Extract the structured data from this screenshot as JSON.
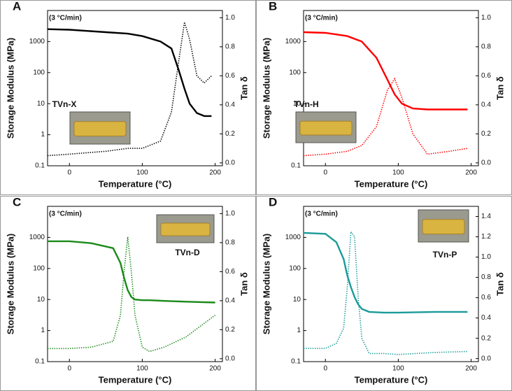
{
  "chart_data": [
    {
      "type": "line",
      "panel": "A",
      "annotation": "(3 °C/min)",
      "sample_label": "TVn-X",
      "xlabel": "Temperature (°C)",
      "ylabel": "Storage Modulus (MPa)",
      "y2label": "Tan δ",
      "log_y": true,
      "xlim": [
        -30,
        210
      ],
      "ylim": [
        0.1,
        10000
      ],
      "y2lim": [
        -0.02,
        1.05
      ],
      "xticks": [
        0,
        100,
        200
      ],
      "yticks": [
        0.1,
        1,
        10,
        100,
        1000
      ],
      "y2ticks": [
        {
          "value": 0,
          "label": "0.0"
        },
        0.2,
        0.4,
        0.6,
        0.8,
        {
          "value": 1,
          "label": "1.0"
        }
      ],
      "x": [
        -30,
        0,
        50,
        80,
        100,
        125,
        140,
        150,
        158,
        165,
        175,
        185,
        195
      ],
      "series": [
        {
          "color": "#000000",
          "line_style": "solid",
          "values": [
            2500,
            2400,
            2000,
            1800,
            1500,
            1000,
            600,
            120,
            30,
            10,
            5,
            4,
            4
          ]
        },
        {
          "color": "#000000",
          "line_style": "dotted",
          "axis": "y2",
          "values": [
            0.05,
            0.06,
            0.08,
            0.1,
            0.1,
            0.15,
            0.35,
            0.7,
            0.97,
            0.85,
            0.6,
            0.55,
            0.6
          ]
        }
      ]
    },
    {
      "type": "line",
      "panel": "B",
      "annotation": "(3 °C/min)",
      "sample_label": "TVn-H",
      "xlabel": "Temperature (°C)",
      "ylabel": "Storage Modulus (MPa)",
      "y2label": "Tan δ",
      "log_y": true,
      "xlim": [
        -30,
        210
      ],
      "ylim": [
        0.1,
        10000
      ],
      "y2lim": [
        -0.02,
        1.05
      ],
      "xticks": [
        0,
        100,
        200
      ],
      "yticks": [
        0.1,
        1,
        10,
        100,
        1000
      ],
      "y2ticks": [
        {
          "value": 0,
          "label": "0.0"
        },
        0.2,
        0.4,
        0.6,
        0.8,
        {
          "value": 1,
          "label": "1.0"
        }
      ],
      "x": [
        -30,
        0,
        30,
        50,
        70,
        85,
        95,
        105,
        120,
        140,
        170,
        195
      ],
      "series": [
        {
          "color": "#ff0000",
          "line_style": "solid",
          "values": [
            2000,
            1900,
            1500,
            1000,
            300,
            60,
            20,
            10,
            7,
            6.5,
            6.5,
            6.5
          ]
        },
        {
          "color": "#ff0000",
          "line_style": "dotted",
          "axis": "y2",
          "values": [
            0.05,
            0.06,
            0.08,
            0.12,
            0.25,
            0.5,
            0.58,
            0.45,
            0.2,
            0.06,
            0.08,
            0.1
          ]
        }
      ]
    },
    {
      "type": "line",
      "panel": "C",
      "annotation": "(3 °C/min)",
      "sample_label": "TVn-D",
      "xlabel": "Temperature (°C)",
      "ylabel": "Storage Modulus (MPa)",
      "y2label": "Tan δ",
      "log_y": true,
      "xlim": [
        -30,
        210
      ],
      "ylim": [
        0.1,
        10000
      ],
      "y2lim": [
        -0.02,
        1.05
      ],
      "xticks": [
        0,
        100,
        200
      ],
      "yticks": [
        0.1,
        1,
        10,
        100,
        1000
      ],
      "y2ticks": [
        {
          "value": 0,
          "label": "0.0"
        },
        0.2,
        0.4,
        0.6,
        0.8,
        {
          "value": 1,
          "label": "1.0"
        }
      ],
      "x": [
        -30,
        0,
        30,
        60,
        70,
        75,
        80,
        85,
        90,
        100,
        110,
        130,
        160,
        200
      ],
      "series": [
        {
          "color": "#1a8a1a",
          "line_style": "solid",
          "values": [
            750,
            750,
            650,
            450,
            150,
            50,
            20,
            12,
            10,
            9.5,
            9.5,
            9,
            8.5,
            8
          ]
        },
        {
          "color": "#1a8a1a",
          "line_style": "dotted",
          "axis": "y2",
          "values": [
            0.07,
            0.07,
            0.08,
            0.12,
            0.3,
            0.6,
            0.84,
            0.6,
            0.3,
            0.08,
            0.05,
            0.08,
            0.15,
            0.3
          ]
        }
      ]
    },
    {
      "type": "line",
      "panel": "D",
      "annotation": "(3 °C/min)",
      "sample_label": "TVn-P",
      "xlabel": "Temperature (°C)",
      "ylabel": "Storage Modulus (MPa)",
      "y2label": "Tan δ",
      "log_y": true,
      "xlim": [
        -30,
        210
      ],
      "ylim": [
        0.1,
        10000
      ],
      "y2lim": [
        -0.03,
        1.5
      ],
      "xticks": [
        0,
        100,
        200
      ],
      "yticks": [
        0.1,
        1,
        10,
        100,
        1000
      ],
      "y2ticks": [
        {
          "value": 0,
          "label": "0.0"
        },
        0.2,
        0.4,
        0.6,
        0.8,
        {
          "value": 1,
          "label": "1.0"
        },
        1.2,
        1.4
      ],
      "x": [
        -30,
        0,
        15,
        25,
        30,
        35,
        40,
        45,
        50,
        60,
        80,
        100,
        150,
        195
      ],
      "series": [
        {
          "color": "#1a9a9a",
          "line_style": "solid",
          "values": [
            1400,
            1300,
            700,
            200,
            60,
            25,
            12,
            7,
            5,
            4,
            3.8,
            3.8,
            4,
            4
          ]
        },
        {
          "color": "#1a9a9a",
          "line_style": "dotted",
          "axis": "y2",
          "values": [
            0.1,
            0.1,
            0.15,
            0.3,
            0.7,
            1.25,
            1.2,
            0.6,
            0.2,
            0.05,
            0.05,
            0.04,
            0.06,
            0.07
          ]
        }
      ]
    }
  ]
}
